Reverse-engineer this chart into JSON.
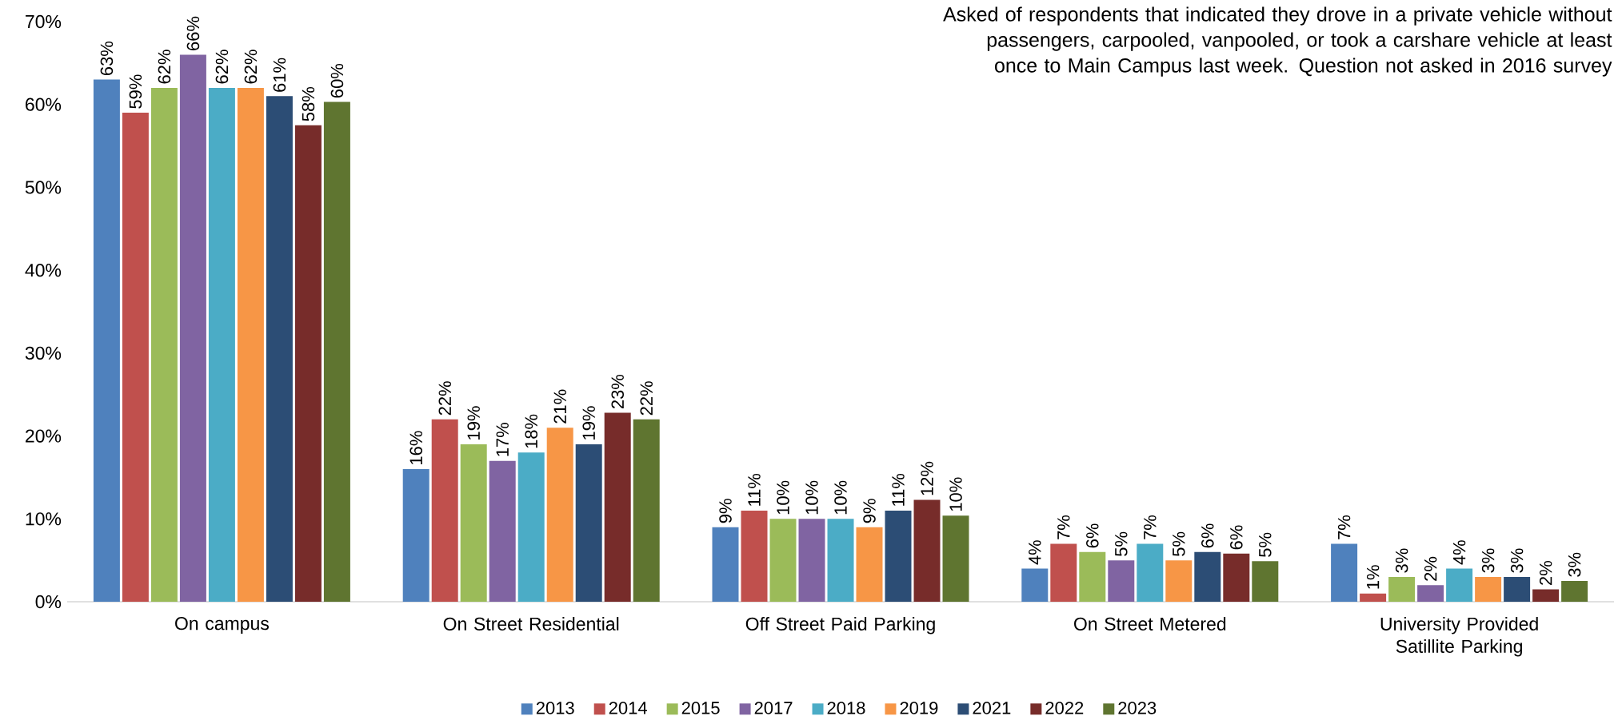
{
  "chart_data": {
    "type": "bar",
    "categories": [
      "On campus",
      "On Street Residential",
      "Off Street Paid Parking",
      "On Street Metered",
      "University Provided Satillite Parking"
    ],
    "series": [
      {
        "name": "2013",
        "color": "#4f81bd",
        "values": [
          63,
          16,
          9,
          4,
          7
        ],
        "value_labels": [
          "63%",
          "16%",
          "9%",
          "4%",
          "7%"
        ]
      },
      {
        "name": "2014",
        "color": "#c0504d",
        "values": [
          59,
          22,
          11,
          7,
          1
        ],
        "value_labels": [
          "59%",
          "22%",
          "11%",
          "7%",
          "1%"
        ]
      },
      {
        "name": "2015",
        "color": "#9bbb59",
        "values": [
          62,
          19,
          10,
          6,
          3
        ],
        "value_labels": [
          "62%",
          "19%",
          "10%",
          "6%",
          "3%"
        ]
      },
      {
        "name": "2017",
        "color": "#8064a2",
        "values": [
          66,
          17,
          10,
          5,
          2
        ],
        "value_labels": [
          "66%",
          "17%",
          "10%",
          "5%",
          "2%"
        ]
      },
      {
        "name": "2018",
        "color": "#4bacc6",
        "values": [
          62,
          18,
          10,
          7,
          4
        ],
        "value_labels": [
          "62%",
          "18%",
          "10%",
          "7%",
          "4%"
        ]
      },
      {
        "name": "2019",
        "color": "#f79646",
        "values": [
          62,
          21,
          9,
          5,
          3
        ],
        "value_labels": [
          "62%",
          "21%",
          "9%",
          "5%",
          "3%"
        ]
      },
      {
        "name": "2021",
        "color": "#2c4d75",
        "values": [
          61,
          19,
          11,
          6,
          3
        ],
        "value_labels": [
          "61%",
          "19%",
          "11%",
          "6%",
          "3%"
        ]
      },
      {
        "name": "2022",
        "color": "#772c2a",
        "values": [
          57.5,
          22.8,
          12.3,
          5.8,
          1.5
        ],
        "value_labels": [
          "58%",
          "23%",
          "12%",
          "6%",
          "2%"
        ]
      },
      {
        "name": "2023",
        "color": "#5f7530",
        "values": [
          60.3,
          22,
          10.4,
          4.9,
          2.5
        ],
        "value_labels": [
          "60%",
          "22%",
          "10%",
          "5%",
          "3%"
        ]
      }
    ],
    "ylim": [
      0,
      70
    ],
    "yticks": [
      {
        "value": 0,
        "label": "0%"
      },
      {
        "value": 10,
        "label": "10%"
      },
      {
        "value": 20,
        "label": "20%"
      },
      {
        "value": 30,
        "label": "30%"
      },
      {
        "value": 40,
        "label": "40%"
      },
      {
        "value": 50,
        "label": "50%"
      },
      {
        "value": 60,
        "label": "60%"
      },
      {
        "value": 70,
        "label": "70%"
      }
    ],
    "legend": "bottom",
    "annotations": [
      "Asked of respondents that indicated they drove in a private vehicle without passengers, carpooled, vanpooled, or took a carshare vehicle at least once to Main Campus last week. Question not asked in 2016 survey"
    ]
  }
}
